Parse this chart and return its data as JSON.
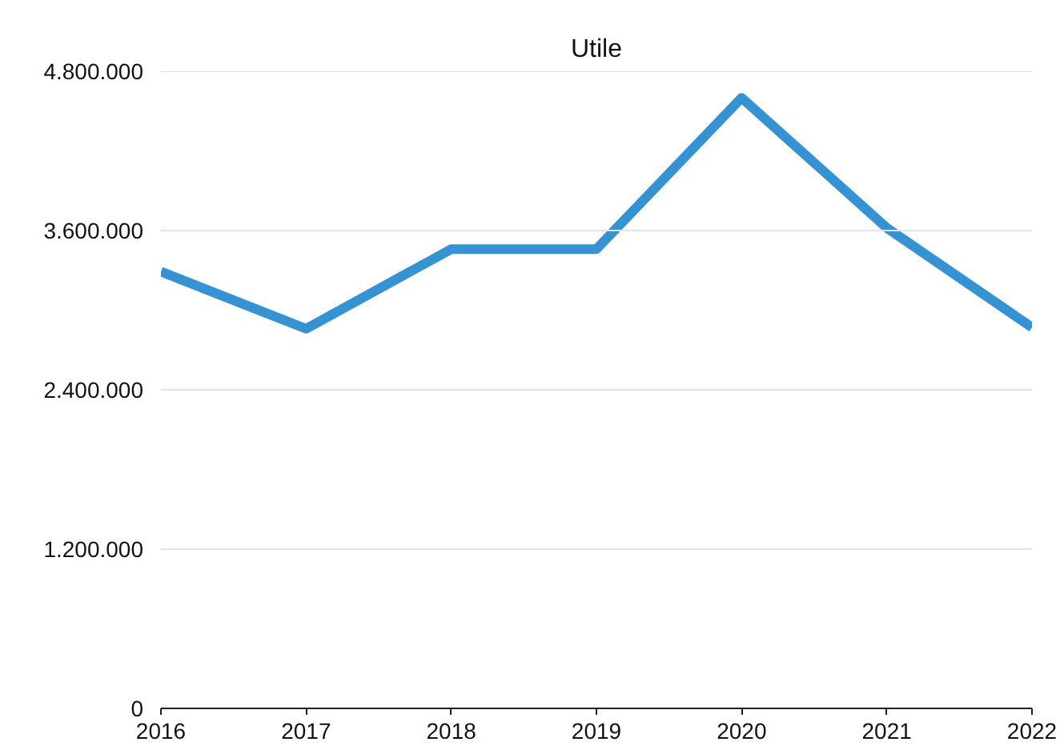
{
  "chart_data": {
    "type": "line",
    "title": "Utile",
    "categories": [
      "2016",
      "2017",
      "2018",
      "2019",
      "2020",
      "2021",
      "2022"
    ],
    "series": [
      {
        "color": "#3592d3",
        "values": [
          3290000,
          2860000,
          3460000,
          3460000,
          4600000,
          3620000,
          2870000
        ]
      }
    ],
    "ylim": [
      0,
      4800000
    ],
    "yticks": [
      {
        "value": 0,
        "label": "0"
      },
      {
        "value": 1200000,
        "label": "1.200.000"
      },
      {
        "value": 2400000,
        "label": "2.400.000"
      },
      {
        "value": 3600000,
        "label": "3.600.000"
      },
      {
        "value": 4800000,
        "label": "4.800.000"
      }
    ],
    "grid": "y",
    "marker": "none",
    "line_style": "solid"
  }
}
